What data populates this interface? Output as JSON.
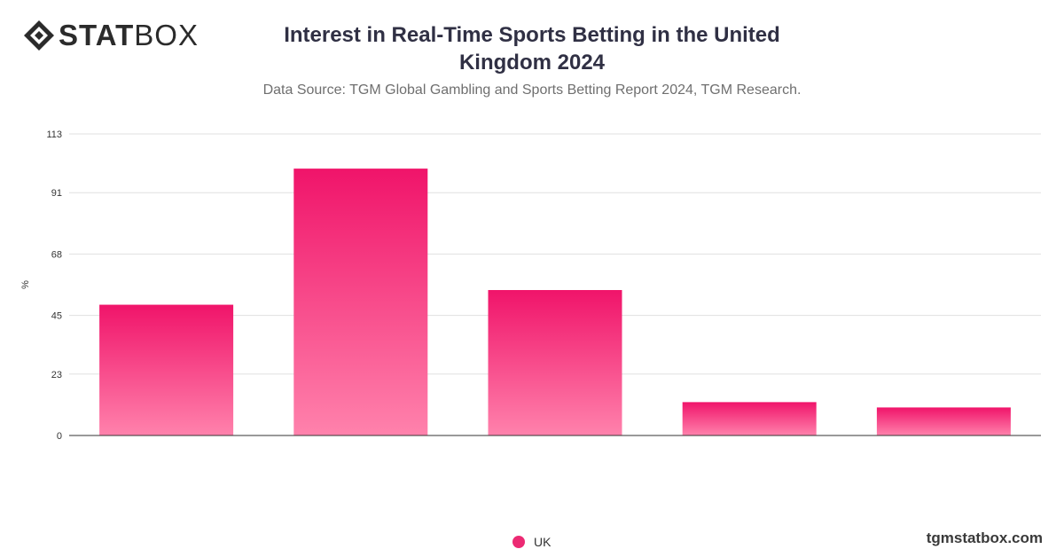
{
  "brand": {
    "logo_bold": "STAT",
    "logo_light": "BOX",
    "url": "tgmstatbox.com"
  },
  "header": {
    "title": "Interest in Real-Time Sports Betting in the United Kingdom 2024",
    "subtitle": "Data Source: TGM Global Gambling and Sports Betting Report 2024, TGM Research."
  },
  "colors": {
    "bar_top": "#f0146a",
    "bar_bottom": "#ff82ac",
    "grid": "#e1e1e1",
    "axis": "#333333",
    "legend_swatch": "#ec2a73"
  },
  "chart_data": {
    "type": "bar",
    "categories": [
      "",
      "",
      "",
      "",
      ""
    ],
    "series": [
      {
        "name": "UK",
        "values": [
          49,
          100,
          54.5,
          12.5,
          10.5
        ]
      }
    ],
    "ylabel": "%",
    "ylim": [
      0,
      113
    ],
    "yticks": [
      0,
      23,
      45,
      68,
      91,
      113
    ],
    "grid": true,
    "legend_position": "bottom"
  }
}
